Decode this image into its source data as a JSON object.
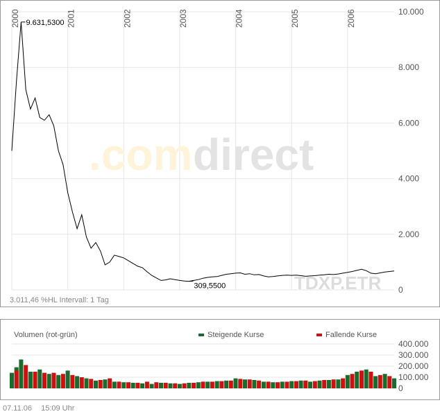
{
  "watermark": {
    "part1": ".com",
    "part2": "direct",
    "color1": "#fff3d9",
    "color2": "#e3e3e3"
  },
  "price_panel": {
    "info_text": "3.011,46 %HL  Intervall: 1 Tag",
    "symbol": "TDXP.ETR"
  },
  "volume_panel": {
    "title": "Volumen (rot-grün)",
    "legend_rising": "Steigende Kurse",
    "legend_falling": "Fallende Kurse"
  },
  "footer": {
    "date": "07.11.06",
    "time": "15:09 Uhr"
  },
  "colors": {
    "price_line": "#000000",
    "rising": "#1a6b2e",
    "falling": "#cc1111",
    "grid": "#e6e6e6",
    "border": "#999999"
  },
  "chart_data": [
    {
      "type": "line",
      "x_tick_labels": [
        "2000",
        "2001",
        "2002",
        "2003",
        "2004",
        "2005",
        "2006"
      ],
      "y_tick_labels": [
        "0",
        "2.000",
        "4.000",
        "6.000",
        "8.000",
        "10.000"
      ],
      "ylim": [
        0,
        10000
      ],
      "xlim": [
        "2000-01",
        "2006-11"
      ],
      "annotations": [
        {
          "label": "9.631,5300",
          "x": "2000-03",
          "y": 9631.53
        },
        {
          "label": "309,5500",
          "x": "2003-03",
          "y": 309.55
        }
      ],
      "series": [
        {
          "values": [
            {
              "x": "2000-01",
              "y": 5000
            },
            {
              "x": "2000-02",
              "y": 7500
            },
            {
              "x": "2000-03",
              "y": 9631.53
            },
            {
              "x": "2000-04",
              "y": 7200
            },
            {
              "x": "2000-05",
              "y": 6500
            },
            {
              "x": "2000-06",
              "y": 6900
            },
            {
              "x": "2000-07",
              "y": 6200
            },
            {
              "x": "2000-08",
              "y": 6100
            },
            {
              "x": "2000-09",
              "y": 6300
            },
            {
              "x": "2000-10",
              "y": 5900
            },
            {
              "x": "2000-11",
              "y": 5000
            },
            {
              "x": "2000-12",
              "y": 4500
            },
            {
              "x": "2001-01",
              "y": 3500
            },
            {
              "x": "2001-02",
              "y": 2800
            },
            {
              "x": "2001-03",
              "y": 2200
            },
            {
              "x": "2001-04",
              "y": 2700
            },
            {
              "x": "2001-05",
              "y": 1900
            },
            {
              "x": "2001-06",
              "y": 1500
            },
            {
              "x": "2001-07",
              "y": 1700
            },
            {
              "x": "2001-08",
              "y": 1400
            },
            {
              "x": "2001-09",
              "y": 900
            },
            {
              "x": "2001-10",
              "y": 1000
            },
            {
              "x": "2001-11",
              "y": 1250
            },
            {
              "x": "2001-12",
              "y": 1200
            },
            {
              "x": "2002-01",
              "y": 1150
            },
            {
              "x": "2002-02",
              "y": 1050
            },
            {
              "x": "2002-03",
              "y": 950
            },
            {
              "x": "2002-04",
              "y": 850
            },
            {
              "x": "2002-05",
              "y": 800
            },
            {
              "x": "2002-06",
              "y": 650
            },
            {
              "x": "2002-07",
              "y": 520
            },
            {
              "x": "2002-08",
              "y": 430
            },
            {
              "x": "2002-09",
              "y": 340
            },
            {
              "x": "2002-10",
              "y": 360
            },
            {
              "x": "2002-11",
              "y": 400
            },
            {
              "x": "2002-12",
              "y": 370
            },
            {
              "x": "2003-01",
              "y": 340
            },
            {
              "x": "2003-02",
              "y": 320
            },
            {
              "x": "2003-03",
              "y": 309.55
            },
            {
              "x": "2003-04",
              "y": 340
            },
            {
              "x": "2003-05",
              "y": 370
            },
            {
              "x": "2003-06",
              "y": 420
            },
            {
              "x": "2003-07",
              "y": 450
            },
            {
              "x": "2003-08",
              "y": 470
            },
            {
              "x": "2003-09",
              "y": 480
            },
            {
              "x": "2003-10",
              "y": 520
            },
            {
              "x": "2003-11",
              "y": 560
            },
            {
              "x": "2003-12",
              "y": 580
            },
            {
              "x": "2004-01",
              "y": 600
            },
            {
              "x": "2004-02",
              "y": 610
            },
            {
              "x": "2004-03",
              "y": 560
            },
            {
              "x": "2004-04",
              "y": 580
            },
            {
              "x": "2004-05",
              "y": 540
            },
            {
              "x": "2004-06",
              "y": 550
            },
            {
              "x": "2004-07",
              "y": 500
            },
            {
              "x": "2004-08",
              "y": 470
            },
            {
              "x": "2004-09",
              "y": 480
            },
            {
              "x": "2004-10",
              "y": 500
            },
            {
              "x": "2004-11",
              "y": 520
            },
            {
              "x": "2004-12",
              "y": 530
            },
            {
              "x": "2005-01",
              "y": 520
            },
            {
              "x": "2005-02",
              "y": 530
            },
            {
              "x": "2005-03",
              "y": 510
            },
            {
              "x": "2005-04",
              "y": 490
            },
            {
              "x": "2005-05",
              "y": 500
            },
            {
              "x": "2005-06",
              "y": 510
            },
            {
              "x": "2005-07",
              "y": 530
            },
            {
              "x": "2005-08",
              "y": 540
            },
            {
              "x": "2005-09",
              "y": 560
            },
            {
              "x": "2005-10",
              "y": 550
            },
            {
              "x": "2005-11",
              "y": 570
            },
            {
              "x": "2005-12",
              "y": 600
            },
            {
              "x": "2006-01",
              "y": 630
            },
            {
              "x": "2006-02",
              "y": 660
            },
            {
              "x": "2006-03",
              "y": 700
            },
            {
              "x": "2006-04",
              "y": 740
            },
            {
              "x": "2006-05",
              "y": 690
            },
            {
              "x": "2006-06",
              "y": 600
            },
            {
              "x": "2006-07",
              "y": 580
            },
            {
              "x": "2006-08",
              "y": 610
            },
            {
              "x": "2006-09",
              "y": 640
            },
            {
              "x": "2006-10",
              "y": 660
            },
            {
              "x": "2006-11",
              "y": 680
            }
          ]
        }
      ]
    },
    {
      "type": "bar",
      "y_tick_labels": [
        "0",
        "100.000",
        "200.000",
        "300.000",
        "400.000"
      ],
      "ylim": [
        0,
        400000
      ],
      "xlim": [
        "2000-01",
        "2006-11"
      ],
      "series": [
        {
          "name": "Steigende Kurse",
          "values": [
            {
              "x": "2000-01",
              "y": 140000
            },
            {
              "x": "2000-02",
              "y": 190000
            },
            {
              "x": "2000-03",
              "y": 260000
            },
            {
              "x": "2000-05",
              "y": 150000
            },
            {
              "x": "2000-07",
              "y": 170000
            },
            {
              "x": "2000-09",
              "y": 130000
            },
            {
              "x": "2000-11",
              "y": 120000
            },
            {
              "x": "2001-01",
              "y": 160000
            },
            {
              "x": "2001-03",
              "y": 110000
            },
            {
              "x": "2001-05",
              "y": 90000
            },
            {
              "x": "2001-07",
              "y": 70000
            },
            {
              "x": "2001-09",
              "y": 80000
            },
            {
              "x": "2001-11",
              "y": 60000
            },
            {
              "x": "2002-01",
              "y": 55000
            },
            {
              "x": "2002-03",
              "y": 50000
            },
            {
              "x": "2002-05",
              "y": 45000
            },
            {
              "x": "2002-07",
              "y": 40000
            },
            {
              "x": "2002-09",
              "y": 50000
            },
            {
              "x": "2002-11",
              "y": 45000
            },
            {
              "x": "2003-01",
              "y": 40000
            },
            {
              "x": "2003-03",
              "y": 50000
            },
            {
              "x": "2003-05",
              "y": 55000
            },
            {
              "x": "2003-07",
              "y": 60000
            },
            {
              "x": "2003-09",
              "y": 65000
            },
            {
              "x": "2003-11",
              "y": 70000
            },
            {
              "x": "2004-01",
              "y": 90000
            },
            {
              "x": "2004-03",
              "y": 80000
            },
            {
              "x": "2004-05",
              "y": 75000
            },
            {
              "x": "2004-07",
              "y": 60000
            },
            {
              "x": "2004-09",
              "y": 55000
            },
            {
              "x": "2004-11",
              "y": 60000
            },
            {
              "x": "2005-01",
              "y": 65000
            },
            {
              "x": "2005-03",
              "y": 70000
            },
            {
              "x": "2005-05",
              "y": 60000
            },
            {
              "x": "2005-07",
              "y": 70000
            },
            {
              "x": "2005-09",
              "y": 75000
            },
            {
              "x": "2005-11",
              "y": 80000
            },
            {
              "x": "2006-01",
              "y": 120000
            },
            {
              "x": "2006-03",
              "y": 150000
            },
            {
              "x": "2006-05",
              "y": 170000
            },
            {
              "x": "2006-07",
              "y": 110000
            },
            {
              "x": "2006-09",
              "y": 130000
            },
            {
              "x": "2006-11",
              "y": 90000
            }
          ]
        },
        {
          "name": "Fallende Kurse",
          "values": [
            {
              "x": "2000-02",
              "y": 160000
            },
            {
              "x": "2000-04",
              "y": 210000
            },
            {
              "x": "2000-06",
              "y": 150000
            },
            {
              "x": "2000-08",
              "y": 140000
            },
            {
              "x": "2000-10",
              "y": 140000
            },
            {
              "x": "2000-12",
              "y": 130000
            },
            {
              "x": "2001-02",
              "y": 120000
            },
            {
              "x": "2001-04",
              "y": 100000
            },
            {
              "x": "2001-06",
              "y": 85000
            },
            {
              "x": "2001-08",
              "y": 75000
            },
            {
              "x": "2001-10",
              "y": 90000
            },
            {
              "x": "2001-12",
              "y": 60000
            },
            {
              "x": "2002-02",
              "y": 55000
            },
            {
              "x": "2002-04",
              "y": 50000
            },
            {
              "x": "2002-06",
              "y": 60000
            },
            {
              "x": "2002-08",
              "y": 55000
            },
            {
              "x": "2002-10",
              "y": 50000
            },
            {
              "x": "2002-12",
              "y": 45000
            },
            {
              "x": "2003-02",
              "y": 45000
            },
            {
              "x": "2003-04",
              "y": 50000
            },
            {
              "x": "2003-06",
              "y": 60000
            },
            {
              "x": "2003-08",
              "y": 60000
            },
            {
              "x": "2003-10",
              "y": 65000
            },
            {
              "x": "2003-12",
              "y": 70000
            },
            {
              "x": "2004-02",
              "y": 85000
            },
            {
              "x": "2004-04",
              "y": 80000
            },
            {
              "x": "2004-06",
              "y": 70000
            },
            {
              "x": "2004-08",
              "y": 60000
            },
            {
              "x": "2004-10",
              "y": 55000
            },
            {
              "x": "2004-12",
              "y": 60000
            },
            {
              "x": "2005-02",
              "y": 65000
            },
            {
              "x": "2005-04",
              "y": 70000
            },
            {
              "x": "2005-06",
              "y": 65000
            },
            {
              "x": "2005-08",
              "y": 75000
            },
            {
              "x": "2005-10",
              "y": 80000
            },
            {
              "x": "2005-12",
              "y": 90000
            },
            {
              "x": "2006-02",
              "y": 130000
            },
            {
              "x": "2006-04",
              "y": 160000
            },
            {
              "x": "2006-06",
              "y": 150000
            },
            {
              "x": "2006-08",
              "y": 120000
            },
            {
              "x": "2006-10",
              "y": 110000
            }
          ]
        }
      ]
    }
  ]
}
